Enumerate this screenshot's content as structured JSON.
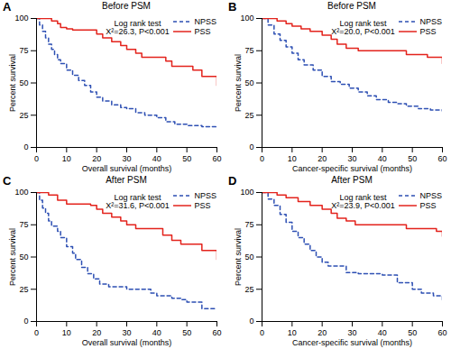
{
  "chart_data": [
    {
      "type": "line",
      "panel": "A",
      "title": "Before PSM",
      "xlabel": "Overall survival (months)",
      "ylabel": "Percent survival",
      "annotations": [
        "Log rank test",
        "X²=26.3, P<0.001"
      ],
      "legend": "top-right",
      "xlim": [
        0,
        60
      ],
      "xticks": [
        0,
        10,
        20,
        30,
        40,
        50,
        60
      ],
      "ylim": [
        0,
        100
      ],
      "yticks": [
        0,
        25,
        50,
        75,
        100
      ],
      "series": [
        {
          "name": "NPSS",
          "color": "#2d4fb3",
          "line_style": "dashed",
          "x": [
            0,
            1,
            2,
            3,
            4,
            5,
            6,
            7,
            8,
            10,
            12,
            14,
            16,
            18,
            20,
            22,
            25,
            28,
            30,
            33,
            36,
            40,
            43,
            46,
            50,
            55,
            60
          ],
          "values": [
            100,
            95,
            90,
            85,
            80,
            76,
            72,
            68,
            65,
            60,
            56,
            52,
            48,
            43,
            39,
            36,
            33,
            31,
            30,
            27,
            25,
            23,
            20,
            18,
            17,
            16,
            15
          ]
        },
        {
          "name": "PSS",
          "color": "#e3231c",
          "line_style": "solid",
          "x": [
            0,
            5,
            7,
            8,
            10,
            12,
            17,
            20,
            22,
            25,
            28,
            30,
            33,
            35,
            40,
            43,
            45,
            50,
            52,
            55,
            58,
            60
          ],
          "values": [
            100,
            98,
            96,
            93,
            92,
            91,
            91,
            88,
            85,
            82,
            79,
            76,
            73,
            70,
            70,
            67,
            63,
            63,
            60,
            55,
            55,
            48
          ]
        }
      ]
    },
    {
      "type": "line",
      "panel": "B",
      "title": "Before PSM",
      "xlabel": "Cancer-specific survival (months)",
      "ylabel": "Percent survival",
      "annotations": [
        "Log rank test",
        "X²=20.0, P<0.001"
      ],
      "legend": "top-right",
      "xlim": [
        0,
        60
      ],
      "xticks": [
        0,
        10,
        20,
        30,
        40,
        50,
        60
      ],
      "ylim": [
        0,
        100
      ],
      "yticks": [
        0,
        25,
        50,
        75,
        100
      ],
      "series": [
        {
          "name": "NPSS",
          "color": "#2d4fb3",
          "line_style": "dashed",
          "x": [
            0,
            2,
            4,
            6,
            8,
            10,
            12,
            14,
            17,
            20,
            23,
            26,
            29,
            32,
            35,
            38,
            42,
            45,
            48,
            52,
            56,
            60
          ],
          "values": [
            100,
            95,
            88,
            83,
            78,
            73,
            68,
            64,
            60,
            55,
            51,
            49,
            46,
            43,
            40,
            37,
            35,
            34,
            32,
            30,
            29,
            28
          ]
        },
        {
          "name": "PSS",
          "color": "#e3231c",
          "line_style": "solid",
          "x": [
            0,
            5,
            8,
            10,
            13,
            16,
            20,
            23,
            25,
            28,
            32,
            40,
            48,
            52,
            55,
            60
          ],
          "values": [
            100,
            98,
            96,
            94,
            92,
            90,
            87,
            84,
            80,
            77,
            75,
            75,
            72,
            72,
            70,
            65
          ]
        }
      ]
    },
    {
      "type": "line",
      "panel": "C",
      "title": "After PSM",
      "xlabel": "Overall survival (months)",
      "ylabel": "Percent survival",
      "annotations": [
        "Log rank test",
        "X²=31.6, P<0.001"
      ],
      "legend": "top-right",
      "xlim": [
        0,
        60
      ],
      "xticks": [
        0,
        10,
        20,
        30,
        40,
        50,
        60
      ],
      "ylim": [
        0,
        100
      ],
      "yticks": [
        0,
        25,
        50,
        75,
        100
      ],
      "series": [
        {
          "name": "NPSS",
          "color": "#2d4fb3",
          "line_style": "dashed",
          "x": [
            0,
            1,
            2,
            3,
            4,
            5,
            7,
            8,
            10,
            12,
            13,
            15,
            17,
            19,
            21,
            24,
            28,
            30,
            35,
            38,
            40,
            45,
            48,
            50,
            55,
            60
          ],
          "values": [
            100,
            94,
            88,
            84,
            78,
            74,
            70,
            65,
            58,
            53,
            48,
            42,
            37,
            33,
            29,
            27,
            27,
            25,
            25,
            22,
            20,
            18,
            17,
            15,
            10,
            10
          ]
        },
        {
          "name": "PSS",
          "color": "#e3231c",
          "line_style": "solid",
          "x": [
            0,
            4,
            7,
            10,
            14,
            18,
            20,
            22,
            25,
            28,
            30,
            33,
            38,
            42,
            45,
            48,
            52,
            55,
            60
          ],
          "values": [
            100,
            98,
            94,
            91,
            91,
            90,
            87,
            84,
            81,
            78,
            75,
            72,
            72,
            67,
            63,
            60,
            60,
            55,
            48
          ]
        }
      ]
    },
    {
      "type": "line",
      "panel": "D",
      "title": "After PSM",
      "xlabel": "Cancer-specific survival (months)",
      "ylabel": "Percent survival",
      "annotations": [
        "Log rank test",
        "X²=23.9, P<0.001"
      ],
      "legend": "top-right",
      "xlim": [
        0,
        60
      ],
      "xticks": [
        0,
        10,
        20,
        30,
        40,
        50,
        60
      ],
      "ylim": [
        0,
        100
      ],
      "yticks": [
        0,
        25,
        50,
        75,
        100
      ],
      "series": [
        {
          "name": "NPSS",
          "color": "#2d4fb3",
          "line_style": "dashed",
          "x": [
            0,
            2,
            4,
            6,
            8,
            10,
            12,
            14,
            16,
            18,
            20,
            22,
            26,
            28,
            32,
            36,
            40,
            45,
            50,
            53,
            57,
            60
          ],
          "values": [
            100,
            95,
            90,
            83,
            77,
            70,
            65,
            60,
            55,
            50,
            46,
            43,
            43,
            38,
            37,
            37,
            36,
            30,
            25,
            22,
            20,
            15
          ]
        },
        {
          "name": "PSS",
          "color": "#e3231c",
          "line_style": "solid",
          "x": [
            0,
            5,
            8,
            12,
            16,
            20,
            23,
            25,
            28,
            31,
            40,
            48,
            55,
            58,
            60
          ],
          "values": [
            100,
            98,
            96,
            93,
            90,
            87,
            84,
            80,
            78,
            75,
            75,
            72,
            72,
            70,
            66
          ]
        }
      ]
    }
  ]
}
